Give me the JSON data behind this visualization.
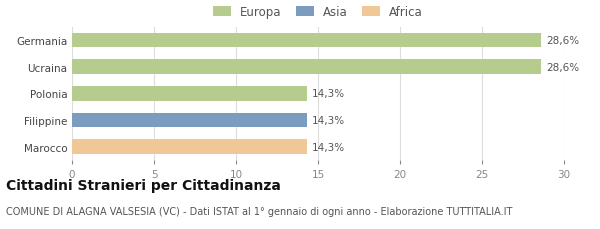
{
  "categories": [
    "Germania",
    "Ucraina",
    "Polonia",
    "Filippine",
    "Marocco"
  ],
  "values": [
    28.6,
    28.6,
    14.3,
    14.3,
    14.3
  ],
  "colors": [
    "#b5cc8e",
    "#b5cc8e",
    "#b5cc8e",
    "#7b9bbf",
    "#f0c898"
  ],
  "labels": [
    "28,6%",
    "28,6%",
    "14,3%",
    "14,3%",
    "14,3%"
  ],
  "xlim": [
    0,
    30
  ],
  "xticks": [
    0,
    5,
    10,
    15,
    20,
    25,
    30
  ],
  "legend_items": [
    {
      "label": "Europa",
      "color": "#b5cc8e"
    },
    {
      "label": "Asia",
      "color": "#7b9bbf"
    },
    {
      "label": "Africa",
      "color": "#f0c898"
    }
  ],
  "title": "Cittadini Stranieri per Cittadinanza",
  "subtitle": "COMUNE DI ALAGNA VALSESIA (VC) - Dati ISTAT al 1° gennaio di ogni anno - Elaborazione TUTTITALIA.IT",
  "title_fontsize": 10,
  "subtitle_fontsize": 7,
  "label_fontsize": 7.5,
  "tick_fontsize": 7.5,
  "legend_fontsize": 8.5,
  "bar_height": 0.55,
  "background_color": "#ffffff",
  "grid_color": "#dddddd"
}
